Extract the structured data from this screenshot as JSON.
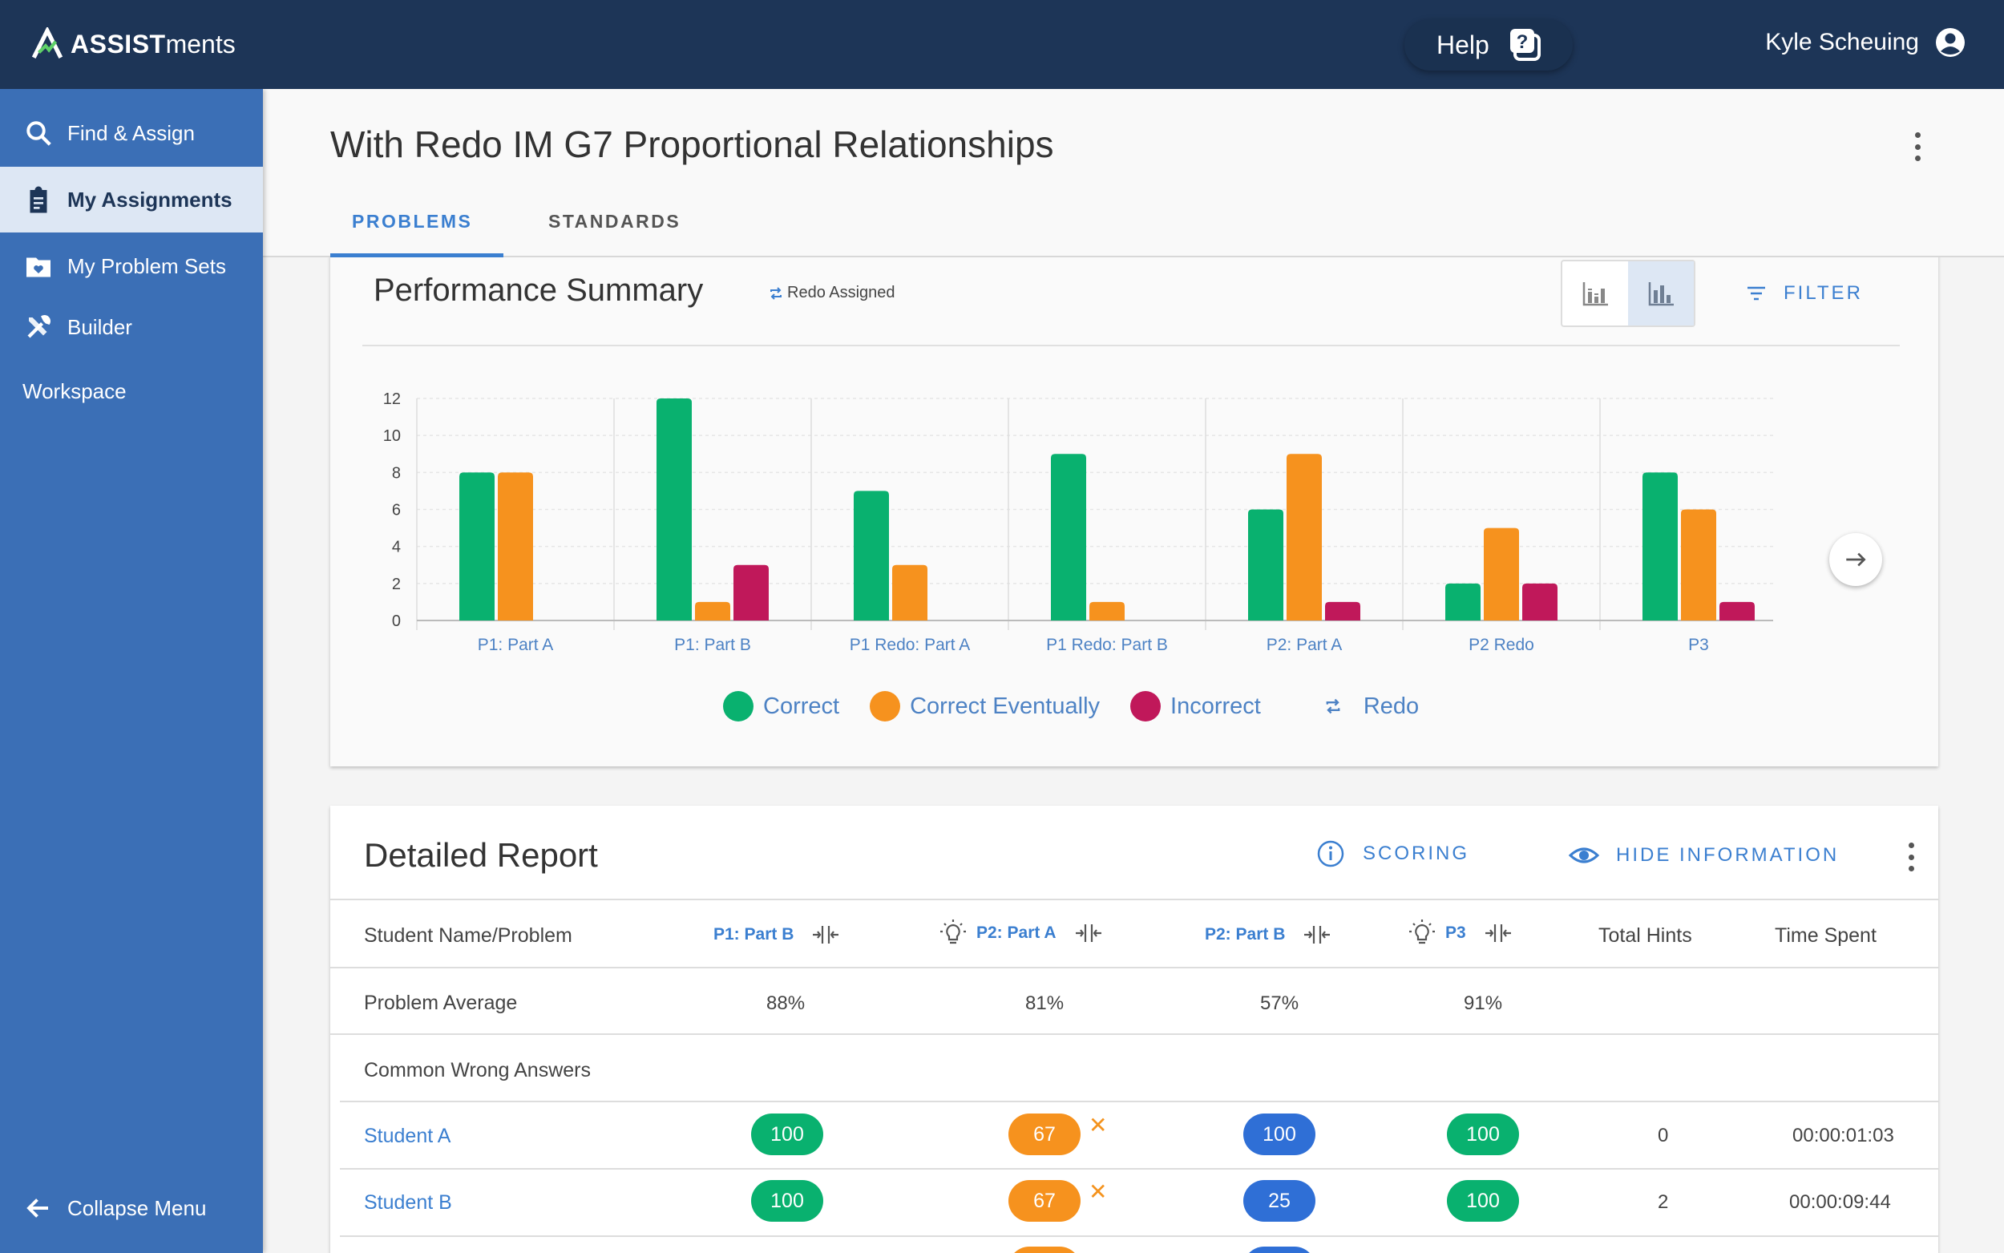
{
  "app": {
    "logo_bold": "ASSIST",
    "logo_rest": "ments"
  },
  "topbar": {
    "help_label": "Help",
    "user_name": "Kyle Scheuing"
  },
  "sidebar": {
    "items": [
      {
        "label": "Find & Assign",
        "icon": "search-icon"
      },
      {
        "label": "My Assignments",
        "icon": "clipboard-icon",
        "active": true
      },
      {
        "label": "My Problem Sets",
        "icon": "folder-heart-icon"
      },
      {
        "label": "Builder",
        "icon": "tools-icon"
      },
      {
        "label": "Workspace"
      }
    ],
    "collapse_label": "Collapse Menu"
  },
  "page": {
    "title": "With Redo IM G7 Proportional Relationships",
    "tabs": [
      {
        "label": "PROBLEMS",
        "active": true
      },
      {
        "label": "STANDARDS"
      }
    ]
  },
  "performance": {
    "title": "Performance Summary",
    "redo_tag": "Redo Assigned",
    "filter_label": "FILTER",
    "legend": {
      "correct": "Correct",
      "eventually": "Correct Eventually",
      "incorrect": "Incorrect",
      "redo": "Redo"
    }
  },
  "colors": {
    "correct": "#09b16f",
    "eventually": "#f6921e",
    "incorrect": "#c0185a",
    "accent": "#3b7fd0",
    "topbar": "#1d3557",
    "sidebar": "#3b6fb6",
    "score_blue": "#2f6fd6"
  },
  "chart_data": {
    "type": "bar",
    "categories": [
      "P1: Part A",
      "P1: Part B",
      "P1 Redo: Part A",
      "P1 Redo: Part B",
      "P2: Part A",
      "P2 Redo",
      "P3"
    ],
    "series": [
      {
        "name": "Correct",
        "values": [
          8,
          12,
          7,
          9,
          6,
          2,
          8
        ]
      },
      {
        "name": "Correct Eventually",
        "values": [
          8,
          1,
          3,
          1,
          9,
          5,
          6
        ]
      },
      {
        "name": "Incorrect",
        "values": [
          0,
          3,
          0,
          0,
          1,
          2,
          1
        ]
      }
    ],
    "yticks": [
      "0",
      "2",
      "4",
      "6",
      "8",
      "10",
      "12"
    ],
    "ylim": [
      0,
      12
    ],
    "grid": true
  },
  "detail": {
    "title": "Detailed Report",
    "scoring_label": "SCORING",
    "hide_label": "HIDE INFORMATION",
    "header": {
      "student": "Student Name/Problem",
      "problems": [
        "P1: Part B",
        "P2: Part A",
        "P2: Part B",
        "P3"
      ],
      "hints": "Total Hints",
      "time": "Time Spent"
    },
    "average_label": "Problem Average",
    "averages": [
      "88%",
      "81%",
      "57%",
      "91%"
    ],
    "wrong_label": "Common Wrong Answers",
    "students": [
      {
        "name": "Student A",
        "scores": [
          "100",
          "67",
          "100",
          "100"
        ],
        "hints": "0",
        "time": "00:00:01:03"
      },
      {
        "name": "Student B",
        "scores": [
          "100",
          "67",
          "25",
          "100"
        ],
        "hints": "2",
        "time": "00:00:09:44"
      }
    ]
  }
}
